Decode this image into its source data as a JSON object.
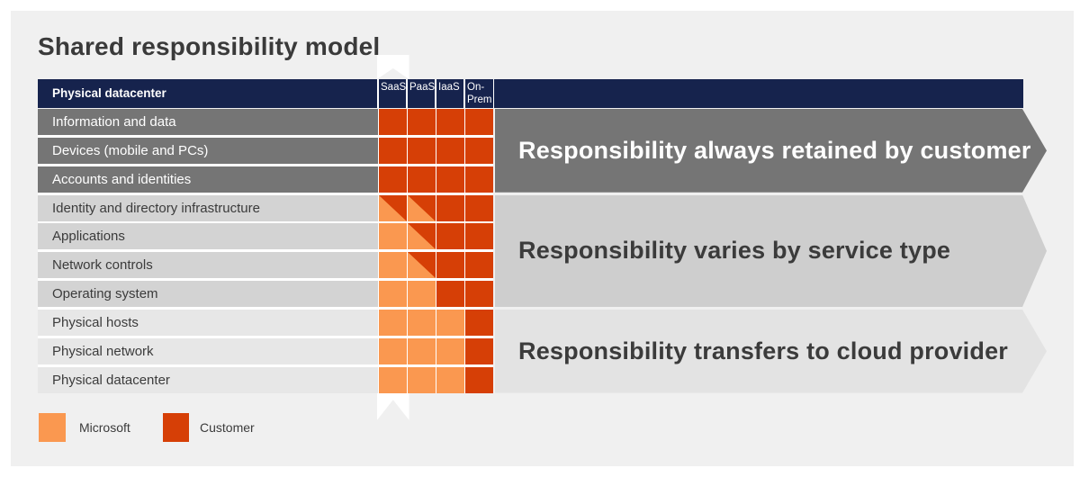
{
  "title": "Shared responsibility model",
  "colors": {
    "microsoft": "#FA9850",
    "customer": "#D63F06",
    "header_bar": "#16234D",
    "banner_dark": "#757575",
    "banner_medium": "#CECECE",
    "banner_light": "#E3E3E3"
  },
  "table": {
    "header_label": "Physical datacenter",
    "columns": [
      "SaaS",
      "PaaS",
      "IaaS",
      "On-Prem"
    ],
    "rows": [
      {
        "label": "Information and data",
        "band": "dark",
        "cells": [
          "customer",
          "customer",
          "customer",
          "customer"
        ]
      },
      {
        "label": "Devices (mobile and PCs)",
        "band": "dark",
        "cells": [
          "customer",
          "customer",
          "customer",
          "customer"
        ]
      },
      {
        "label": "Accounts and identities",
        "band": "dark",
        "cells": [
          "customer",
          "customer",
          "customer",
          "customer"
        ]
      },
      {
        "label": "Identity and directory infrastructure",
        "band": "medium",
        "cells": [
          "split",
          "split",
          "customer",
          "customer"
        ]
      },
      {
        "label": "Applications",
        "band": "medium",
        "cells": [
          "microsoft",
          "split",
          "customer",
          "customer"
        ]
      },
      {
        "label": "Network controls",
        "band": "medium",
        "cells": [
          "microsoft",
          "split",
          "customer",
          "customer"
        ]
      },
      {
        "label": "Operating system",
        "band": "medium",
        "cells": [
          "microsoft",
          "microsoft",
          "customer",
          "customer"
        ]
      },
      {
        "label": "Physical hosts",
        "band": "light",
        "cells": [
          "microsoft",
          "microsoft",
          "microsoft",
          "customer"
        ]
      },
      {
        "label": "Physical network",
        "band": "light",
        "cells": [
          "microsoft",
          "microsoft",
          "microsoft",
          "customer"
        ]
      },
      {
        "label": "Physical datacenter",
        "band": "light",
        "cells": [
          "microsoft",
          "microsoft",
          "microsoft",
          "customer"
        ]
      }
    ]
  },
  "banners": [
    {
      "label": "Responsibility always retained by customer",
      "theme": "dark"
    },
    {
      "label": "Responsibility varies by service type",
      "theme": "medium"
    },
    {
      "label": "Responsibility transfers to cloud provider",
      "theme": "light"
    }
  ],
  "legend": {
    "items": [
      {
        "label": "Microsoft",
        "key": "microsoft"
      },
      {
        "label": "Customer",
        "key": "customer"
      }
    ]
  }
}
